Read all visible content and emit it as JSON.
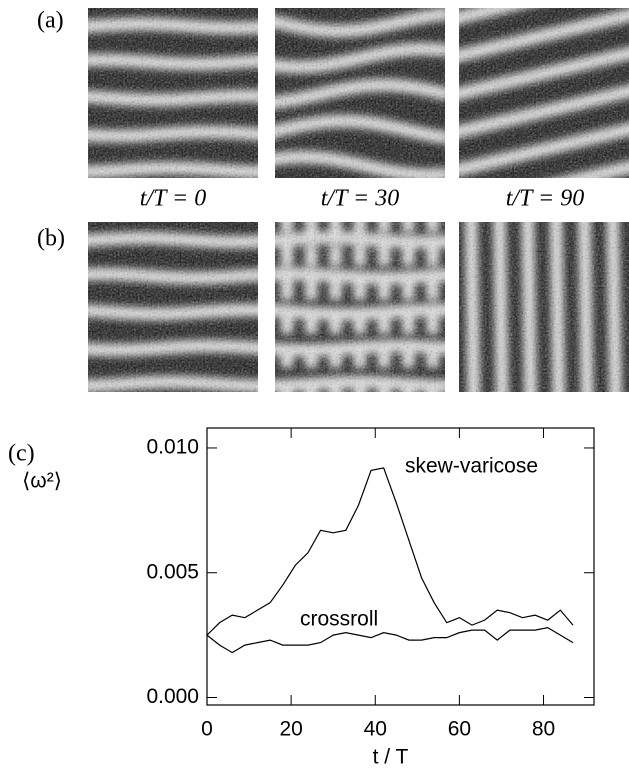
{
  "panel_labels": [
    "(a)",
    "(b)",
    "(c)"
  ],
  "time_labels": [
    "t/T = 0",
    "t/T = 30",
    "t/T = 90"
  ],
  "chart_data": {
    "type": "line",
    "ylabel": "⟨ω²⟩",
    "xlabel": "t / T",
    "annotations": [
      "skew-varicose",
      "crossroll"
    ],
    "x": [
      0,
      3,
      6,
      9,
      12,
      15,
      18,
      21,
      24,
      27,
      30,
      33,
      36,
      39,
      42,
      45,
      48,
      51,
      54,
      57,
      60,
      63,
      66,
      69,
      72,
      75,
      78,
      81,
      84,
      87
    ],
    "series": [
      {
        "name": "skew-varicose",
        "color": "#000000",
        "values": [
          0.0025,
          0.003,
          0.0033,
          0.0032,
          0.0035,
          0.0038,
          0.0045,
          0.0053,
          0.0058,
          0.0067,
          0.0066,
          0.0067,
          0.0077,
          0.0091,
          0.0092,
          0.0078,
          0.0063,
          0.0048,
          0.0038,
          0.003,
          0.0032,
          0.0029,
          0.0031,
          0.0035,
          0.0034,
          0.0032,
          0.0033,
          0.0031,
          0.0035,
          0.0029
        ]
      },
      {
        "name": "crossroll",
        "color": "#000000",
        "values": [
          0.0025,
          0.0021,
          0.0018,
          0.0021,
          0.0022,
          0.0023,
          0.0021,
          0.0021,
          0.0021,
          0.0022,
          0.0025,
          0.0026,
          0.0025,
          0.0024,
          0.0026,
          0.0025,
          0.0023,
          0.0023,
          0.0024,
          0.0024,
          0.0026,
          0.0027,
          0.0027,
          0.0023,
          0.0027,
          0.0027,
          0.0027,
          0.0028,
          0.0025,
          0.0022
        ]
      }
    ],
    "xlim": [
      0,
      92
    ],
    "ylim": [
      -0.0003,
      0.0108
    ],
    "xticks": [
      0,
      20,
      40,
      60,
      80
    ],
    "yticks": [
      {
        "value": 0,
        "label": "0.000"
      },
      {
        "value": 0.005,
        "label": "0.005"
      },
      {
        "value": 0.01,
        "label": "0.010"
      }
    ]
  }
}
